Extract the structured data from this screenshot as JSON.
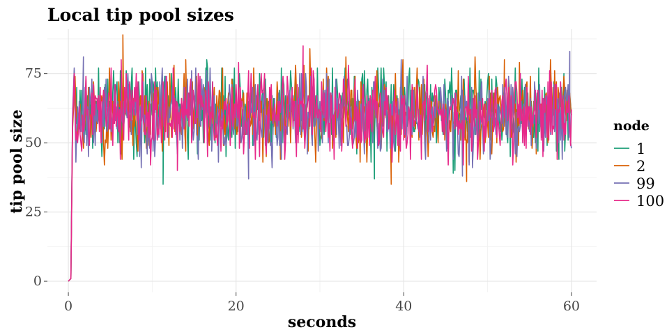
{
  "chart_data": {
    "type": "line",
    "title": "Local tip pool sizes",
    "xlabel": "seconds",
    "ylabel": "tip pool size",
    "xlim": [
      -2.5,
      63
    ],
    "ylim": [
      -4,
      91
    ],
    "x_ticks": [
      0,
      20,
      40,
      60
    ],
    "y_ticks": [
      0,
      25,
      50,
      75
    ],
    "grid": true,
    "legend": {
      "title": "node",
      "position": "right"
    },
    "duration_s": 60,
    "series": [
      {
        "name": "1",
        "color": "#1B9E77",
        "mean": 62,
        "sd": 7.5,
        "min": 35,
        "max": 80,
        "seed": 11,
        "points": [
          [
            0,
            0
          ],
          [
            0.3,
            1
          ],
          [
            0.5,
            58
          ],
          [
            0.7,
            76
          ],
          [
            1,
            70
          ],
          [
            11.3,
            35
          ],
          [
            16.5,
            80
          ],
          [
            36.5,
            37
          ],
          [
            58.5,
            44
          ],
          [
            60,
            60
          ]
        ]
      },
      {
        "name": "2",
        "color": "#D95F02",
        "mean": 61,
        "sd": 7.5,
        "min": 35,
        "max": 89,
        "seed": 23,
        "points": [
          [
            0,
            0
          ],
          [
            0.3,
            1
          ],
          [
            0.5,
            55
          ],
          [
            0.8,
            74
          ],
          [
            6.5,
            89
          ],
          [
            14,
            80
          ],
          [
            38.5,
            35
          ],
          [
            47.5,
            36
          ],
          [
            52,
            80
          ],
          [
            60,
            60
          ]
        ]
      },
      {
        "name": "99",
        "color": "#7570B3",
        "mean": 60,
        "sd": 7.5,
        "min": 37,
        "max": 83,
        "seed": 37,
        "points": [
          [
            0,
            0
          ],
          [
            0.3,
            1
          ],
          [
            0.5,
            60
          ],
          [
            0.7,
            77
          ],
          [
            1.8,
            81
          ],
          [
            21.5,
            37
          ],
          [
            47,
            38
          ],
          [
            59.8,
            83
          ],
          [
            60,
            48
          ]
        ]
      },
      {
        "name": "100",
        "color": "#E7298A",
        "mean": 61,
        "sd": 7.5,
        "min": 38,
        "max": 85,
        "seed": 53,
        "points": [
          [
            0,
            0
          ],
          [
            0.3,
            1
          ],
          [
            0.5,
            57
          ],
          [
            0.7,
            75
          ],
          [
            6.3,
            80
          ],
          [
            28,
            85
          ],
          [
            13,
            40
          ],
          [
            60,
            62
          ]
        ]
      }
    ]
  }
}
